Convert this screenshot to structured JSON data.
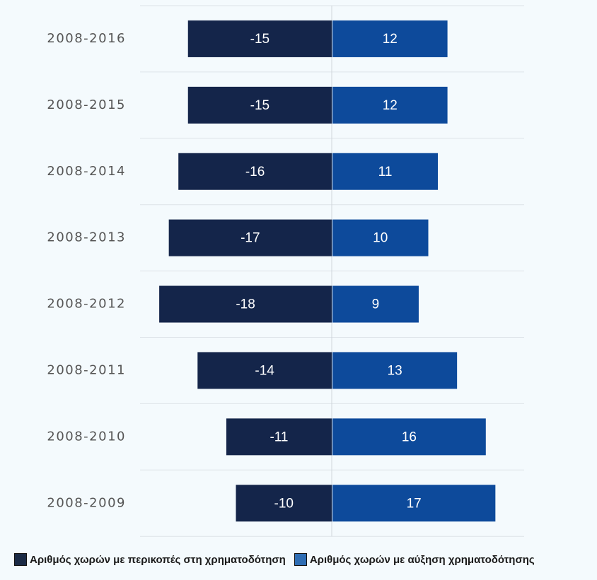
{
  "chart_data": {
    "type": "bar",
    "orientation": "horizontal-diverging",
    "categories": [
      "2008-2016",
      "2008-2015",
      "2008-2014",
      "2008-2013",
      "2008-2012",
      "2008-2011",
      "2008-2010",
      "2008-2009"
    ],
    "series": [
      {
        "name": "Αριθμός χωρών με περικοπές στη χρηματοδότηση",
        "color": "#14254a",
        "values": [
          -15,
          -15,
          -16,
          -17,
          -18,
          -14,
          -11,
          -10
        ]
      },
      {
        "name": "Αριθμός χωρών με αύξηση χρηματοδότησης",
        "color": "#0d4a9b",
        "values": [
          12,
          12,
          11,
          10,
          9,
          13,
          16,
          17
        ]
      }
    ],
    "xlim": [
      -20,
      20
    ],
    "grid": true,
    "legend_position": "bottom"
  },
  "legend": {
    "cuts_label": "Αριθμός χωρών με περικοπές στη χρηματοδότηση",
    "increase_label": "Αριθμός χωρών με αύξηση χρηματοδότησης",
    "cuts_color": "#1b2a45",
    "increase_color": "#2f6db3"
  }
}
